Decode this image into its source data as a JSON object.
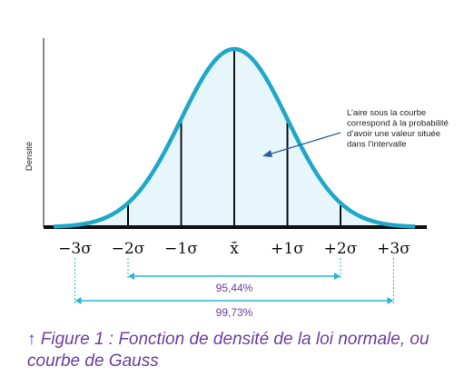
{
  "chart_data": {
    "type": "area",
    "distribution": "normal",
    "mean": 0,
    "sd": 1,
    "x_range": [
      -3.4,
      3.4
    ],
    "ylabel": "Densité",
    "xlabel": "",
    "x_ticks": [
      {
        "x": -3,
        "label": "−3σ"
      },
      {
        "x": -2,
        "label": "−2σ"
      },
      {
        "x": -1,
        "label": "−1σ"
      },
      {
        "x": 0,
        "label": "x̄"
      },
      {
        "x": 1,
        "label": "+1σ"
      },
      {
        "x": 2,
        "label": "+2σ"
      },
      {
        "x": 3,
        "label": "+3σ"
      }
    ],
    "vertical_lines_at": [
      -2,
      -1,
      0,
      1,
      2
    ],
    "intervals": [
      {
        "from": -2,
        "to": 2,
        "label": "95,44%"
      },
      {
        "from": -3,
        "to": 3,
        "label": "99,73%"
      }
    ],
    "annotation": {
      "lines": [
        "L’aire sous la courbe",
        "correspond à la probabilité",
        "d’avoir une valeur située",
        "dans l’intervalle"
      ]
    },
    "colors": {
      "curve": "#1fa8c9",
      "fill": "#e6f6fa",
      "lines": "#111111",
      "interval": "#2db4d6",
      "interval_text": "#6b3fa0",
      "caption": "#6b3fa0"
    }
  },
  "caption": {
    "text": "↑ Figure 1 : Fonction de densité de la loi normale, ou courbe de Gauss"
  }
}
